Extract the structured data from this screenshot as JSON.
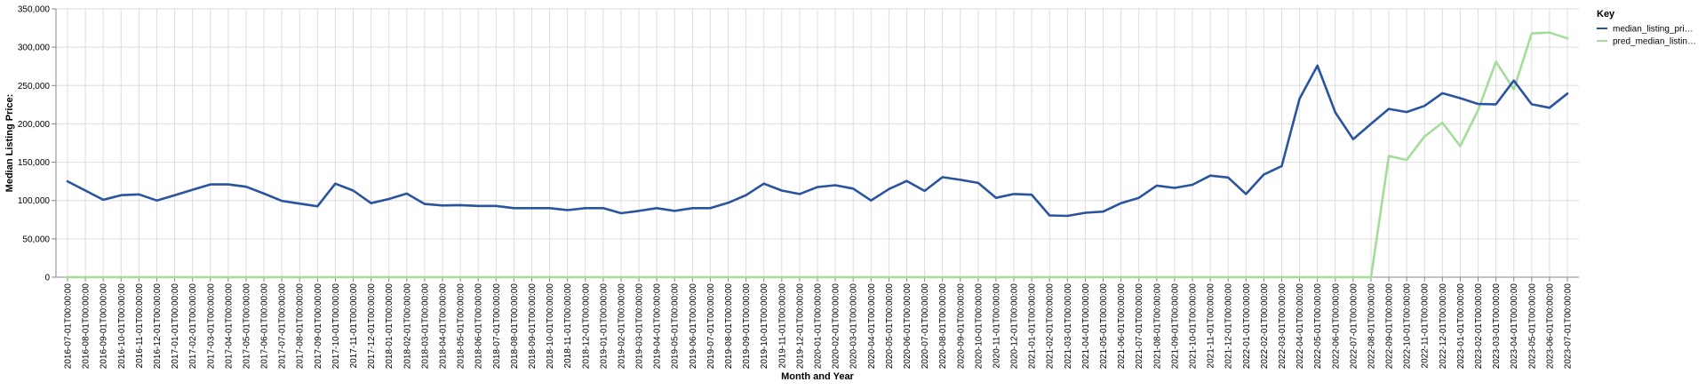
{
  "chart_data": {
    "type": "line",
    "xlabel": "Month and Year",
    "ylabel": "Median Listing Price:",
    "ylim": [
      0,
      350000
    ],
    "y_ticks": [
      "0",
      "50,000",
      "100,000",
      "150,000",
      "200,000",
      "250,000",
      "300,000",
      "350,000"
    ],
    "grid": true,
    "legend": {
      "title": "Key",
      "placement": "top-right",
      "entries": [
        "median_listing_pri…",
        "pred_median_listin…"
      ]
    },
    "x": [
      "2016-07-01T00:00:00",
      "2016-08-01T00:00:00",
      "2016-09-01T00:00:00",
      "2016-10-01T00:00:00",
      "2016-11-01T00:00:00",
      "2016-12-01T00:00:00",
      "2017-01-01T00:00:00",
      "2017-02-01T00:00:00",
      "2017-03-01T00:00:00",
      "2017-04-01T00:00:00",
      "2017-05-01T00:00:00",
      "2017-06-01T00:00:00",
      "2017-07-01T00:00:00",
      "2017-08-01T00:00:00",
      "2017-09-01T00:00:00",
      "2017-10-01T00:00:00",
      "2017-11-01T00:00:00",
      "2017-12-01T00:00:00",
      "2018-01-01T00:00:00",
      "2018-02-01T00:00:00",
      "2018-03-01T00:00:00",
      "2018-04-01T00:00:00",
      "2018-05-01T00:00:00",
      "2018-06-01T00:00:00",
      "2018-07-01T00:00:00",
      "2018-08-01T00:00:00",
      "2018-09-01T00:00:00",
      "2018-10-01T00:00:00",
      "2018-11-01T00:00:00",
      "2018-12-01T00:00:00",
      "2019-01-01T00:00:00",
      "2019-02-01T00:00:00",
      "2019-03-01T00:00:00",
      "2019-04-01T00:00:00",
      "2019-05-01T00:00:00",
      "2019-06-01T00:00:00",
      "2019-07-01T00:00:00",
      "2019-08-01T00:00:00",
      "2019-09-01T00:00:00",
      "2019-10-01T00:00:00",
      "2019-11-01T00:00:00",
      "2019-12-01T00:00:00",
      "2020-01-01T00:00:00",
      "2020-02-01T00:00:00",
      "2020-03-01T00:00:00",
      "2020-04-01T00:00:00",
      "2020-05-01T00:00:00",
      "2020-06-01T00:00:00",
      "2020-07-01T00:00:00",
      "2020-08-01T00:00:00",
      "2020-09-01T00:00:00",
      "2020-10-01T00:00:00",
      "2020-11-01T00:00:00",
      "2020-12-01T00:00:00",
      "2021-01-01T00:00:00",
      "2021-02-01T00:00:00",
      "2021-03-01T00:00:00",
      "2021-04-01T00:00:00",
      "2021-05-01T00:00:00",
      "2021-06-01T00:00:00",
      "2021-07-01T00:00:00",
      "2021-08-01T00:00:00",
      "2021-09-01T00:00:00",
      "2021-10-01T00:00:00",
      "2021-11-01T00:00:00",
      "2021-12-01T00:00:00",
      "2022-01-01T00:00:00",
      "2022-02-01T00:00:00",
      "2022-03-01T00:00:00",
      "2022-04-01T00:00:00",
      "2022-05-01T00:00:00",
      "2022-06-01T00:00:00",
      "2022-07-01T00:00:00",
      "2022-08-01T00:00:00",
      "2022-09-01T00:00:00",
      "2022-10-01T00:00:00",
      "2022-11-01T00:00:00",
      "2022-12-01T00:00:00",
      "2023-01-01T00:00:00",
      "2023-02-01T00:00:00",
      "2023-03-01T00:00:00",
      "2023-04-01T00:00:00",
      "2023-05-01T00:00:00",
      "2023-06-01T00:00:00",
      "2023-07-01T00:00:00"
    ],
    "series": [
      {
        "name": "median_listing_pri…",
        "color": "#2a53a0",
        "values": [
          125000,
          113000,
          101000,
          107000,
          108000,
          100000,
          107000,
          114000,
          121000,
          121000,
          118000,
          109000,
          99500,
          96000,
          92500,
          122000,
          113000,
          96500,
          102000,
          109000,
          95500,
          93500,
          94000,
          93000,
          93000,
          90000,
          90000,
          90000,
          87500,
          90000,
          90000,
          83500,
          86500,
          90000,
          86500,
          90000,
          90000,
          97000,
          107000,
          122000,
          113000,
          108500,
          117500,
          120000,
          115500,
          100000,
          115000,
          125500,
          112500,
          130500,
          127000,
          123000,
          103500,
          108500,
          107500,
          80500,
          80000,
          84000,
          85500,
          96500,
          103500,
          119500,
          116500,
          120500,
          132500,
          130000,
          108500,
          134000,
          145000,
          233000,
          276000,
          215000,
          180000,
          200000,
          219500,
          215500,
          223500,
          240000,
          233500,
          226000,
          225500,
          256500,
          225500,
          221000,
          239500
        ]
      },
      {
        "name": "pred_median_listin…",
        "color": "#a5dc9b",
        "values": [
          0,
          0,
          0,
          0,
          0,
          0,
          0,
          0,
          0,
          0,
          0,
          0,
          0,
          0,
          0,
          0,
          0,
          0,
          0,
          0,
          0,
          0,
          0,
          0,
          0,
          0,
          0,
          0,
          0,
          0,
          0,
          0,
          0,
          0,
          0,
          0,
          0,
          0,
          0,
          0,
          0,
          0,
          0,
          0,
          0,
          0,
          0,
          0,
          0,
          0,
          0,
          0,
          0,
          0,
          0,
          0,
          0,
          0,
          0,
          0,
          0,
          0,
          0,
          0,
          0,
          0,
          0,
          0,
          0,
          0,
          0,
          0,
          0,
          0,
          158000,
          153000,
          183500,
          201500,
          171000,
          218000,
          281000,
          245000,
          318000,
          319000,
          311500
        ]
      }
    ]
  }
}
